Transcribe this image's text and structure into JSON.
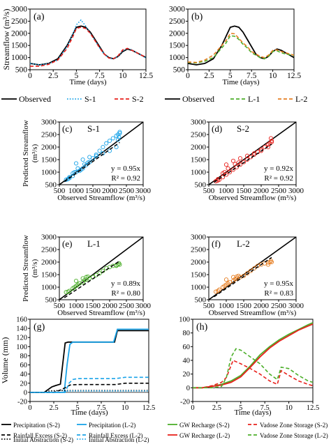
{
  "chart_data": [
    {
      "id": "a",
      "type": "line",
      "panel_label": "(a)",
      "ylabel": "Streamflow (m³/s)",
      "xlabel": "Time (days)",
      "xlim": [
        0,
        12.5
      ],
      "ylim": [
        500,
        3000
      ],
      "xticks": [
        "0",
        "2.5",
        "5",
        "7.5",
        "10",
        "12.5"
      ],
      "yticks": [
        "500",
        "1000",
        "1500",
        "2000",
        "2500",
        "3000"
      ],
      "series": [
        {
          "name": "Observed",
          "color": "#000000",
          "dash": "solid",
          "x": [
            0,
            1,
            2,
            3,
            4,
            4.6,
            5,
            5.5,
            6,
            6.5,
            7,
            7.5,
            8,
            8.5,
            9,
            9.5,
            10,
            10.5,
            11,
            11.5,
            12,
            12.5
          ],
          "y": [
            760,
            700,
            760,
            950,
            1500,
            1950,
            2250,
            2300,
            2250,
            2050,
            1750,
            1450,
            1150,
            1000,
            950,
            1050,
            1250,
            1350,
            1300,
            1200,
            1100,
            1000
          ]
        },
        {
          "name": "S-1",
          "color": "#1aa3e8",
          "dash": "dot",
          "x": [
            0,
            1,
            2,
            3,
            4,
            4.6,
            5,
            5.5,
            6,
            6.5,
            7,
            7.5,
            8,
            8.5,
            9,
            9.5,
            10,
            10.5,
            11,
            11.5,
            12,
            12.5
          ],
          "y": [
            760,
            700,
            750,
            900,
            1450,
            1950,
            2350,
            2550,
            2300,
            2000,
            1700,
            1400,
            1150,
            980,
            940,
            1060,
            1280,
            1380,
            1320,
            1200,
            1100,
            980
          ]
        },
        {
          "name": "S-2",
          "color": "#e8211c",
          "dash": "dash",
          "x": [
            0,
            1,
            2,
            3,
            4,
            4.6,
            5,
            5.5,
            6,
            6.5,
            7,
            7.5,
            8,
            8.5,
            9,
            9.5,
            10,
            10.5,
            11,
            11.5,
            12,
            12.5
          ],
          "y": [
            640,
            640,
            720,
            900,
            1380,
            1850,
            2200,
            2250,
            2200,
            2000,
            1700,
            1400,
            1150,
            980,
            950,
            1080,
            1320,
            1380,
            1300,
            1200,
            1100,
            1020
          ]
        }
      ],
      "legend": {
        "items": [
          "Observed",
          "S-1",
          "S-2"
        ]
      }
    },
    {
      "id": "b",
      "type": "line",
      "panel_label": "(b)",
      "xlabel": "Time (days)",
      "xlim": [
        0,
        12.5
      ],
      "ylim": [
        500,
        3000
      ],
      "xticks": [
        "0",
        "2.5",
        "5",
        "7.5",
        "10",
        "12.5"
      ],
      "yticks": [
        "500",
        "1000",
        "1500",
        "2000",
        "2500",
        "3000"
      ],
      "series": [
        {
          "name": "Observed",
          "color": "#000000",
          "dash": "solid",
          "x": [
            0,
            1,
            2,
            3,
            4,
            4.6,
            5,
            5.5,
            6,
            6.5,
            7,
            7.5,
            8,
            8.5,
            9,
            9.5,
            10,
            10.5,
            11,
            11.5,
            12,
            12.5
          ],
          "y": [
            760,
            700,
            760,
            950,
            1500,
            1950,
            2250,
            2300,
            2250,
            2050,
            1750,
            1450,
            1150,
            1000,
            950,
            1050,
            1250,
            1350,
            1300,
            1200,
            1100,
            1000
          ]
        },
        {
          "name": "L-1",
          "color": "#4caf2a",
          "dash": "dash",
          "x": [
            0,
            1,
            2,
            3,
            4,
            4.5,
            5,
            5.5,
            6,
            6.5,
            7,
            7.5,
            8,
            8.5,
            9,
            9.5,
            10,
            10.5,
            11,
            11.5,
            12,
            12.5
          ],
          "y": [
            800,
            780,
            850,
            1000,
            1400,
            1600,
            1900,
            1880,
            1750,
            1550,
            1400,
            1200,
            1100,
            1000,
            950,
            1050,
            1250,
            1280,
            1200,
            1150,
            1120,
            1080
          ]
        },
        {
          "name": "L-2",
          "color": "#e67e22",
          "dash": "dash",
          "x": [
            0,
            1,
            2,
            3,
            4,
            4.5,
            5,
            5.5,
            6,
            6.5,
            7,
            7.5,
            8,
            8.5,
            9,
            9.5,
            10,
            10.5,
            11,
            11.5,
            12,
            12.5
          ],
          "y": [
            820,
            800,
            900,
            1100,
            1500,
            1700,
            2000,
            1980,
            1800,
            1600,
            1450,
            1250,
            1150,
            1050,
            1000,
            1100,
            1300,
            1320,
            1250,
            1200,
            1150,
            1100
          ]
        }
      ],
      "legend": {
        "items": [
          "Observed",
          "L-1",
          "L-2"
        ]
      }
    },
    {
      "id": "c",
      "type": "scatter",
      "panel_label": "(c)",
      "series_label": "S-1",
      "xlabel": "Observed Streamflow (m³/s)",
      "ylabel": "Predicted Streamflow (m³/s)",
      "xlim": [
        500,
        3000
      ],
      "ylim": [
        500,
        3000
      ],
      "xticks": [
        "500",
        "1000",
        "1500",
        "2000",
        "2500",
        "3000"
      ],
      "yticks": [
        "500",
        "1000",
        "1500",
        "2000",
        "2500",
        "3000"
      ],
      "color": "#1aa3e8",
      "fit_slope": 0.95,
      "equation": "y = 0.95x",
      "r2": "R² = 0.92",
      "x": [
        700,
        750,
        800,
        900,
        1000,
        1100,
        1150,
        1200,
        1300,
        1400,
        1500,
        1600,
        1700,
        1800,
        1900,
        2000,
        2100,
        2200,
        2250,
        2300,
        1000,
        1200,
        1400,
        1600,
        1800,
        2000,
        2200,
        2250,
        2300,
        2280,
        950,
        1050,
        1250,
        1350,
        900,
        800
      ],
      "y": [
        700,
        720,
        760,
        850,
        1000,
        1050,
        1100,
        1150,
        1280,
        1400,
        1550,
        1700,
        1850,
        2000,
        2150,
        2250,
        2350,
        2450,
        2500,
        2550,
        1350,
        1500,
        1600,
        1650,
        1750,
        1850,
        2000,
        2300,
        2600,
        2400,
        1000,
        1150,
        1320,
        1380,
        950,
        800
      ]
    },
    {
      "id": "d",
      "type": "scatter",
      "panel_label": "(d)",
      "series_label": "S-2",
      "xlabel": "Observed Streamflow (m³/s)",
      "xlim": [
        500,
        3000
      ],
      "ylim": [
        500,
        3000
      ],
      "xticks": [
        "500",
        "1000",
        "1500",
        "2000",
        "2500",
        "3000"
      ],
      "yticks": [
        "500",
        "1000",
        "1500",
        "2000",
        "2500",
        "3000"
      ],
      "color": "#e8211c",
      "fit_slope": 0.92,
      "equation": "y = 0.92x",
      "r2": "R² = 0.92",
      "x": [
        700,
        750,
        800,
        900,
        1000,
        1100,
        1200,
        1300,
        1400,
        1500,
        1600,
        1700,
        1800,
        1900,
        2000,
        2100,
        2200,
        2250,
        2300,
        1000,
        1200,
        1400,
        1600,
        1800,
        2000,
        2200,
        2300,
        2280,
        950,
        1050,
        1250,
        1350,
        900,
        760
      ],
      "y": [
        640,
        660,
        700,
        800,
        900,
        1000,
        1100,
        1200,
        1300,
        1400,
        1500,
        1600,
        1700,
        1800,
        1900,
        2000,
        2100,
        2150,
        2200,
        1300,
        1450,
        1550,
        1650,
        1750,
        1850,
        2000,
        2250,
        2350,
        1000,
        1150,
        1320,
        1380,
        950,
        720
      ]
    },
    {
      "id": "e",
      "type": "scatter",
      "panel_label": "(e)",
      "series_label": "L-1",
      "xlabel": "Observed Streamflow (m³/s)",
      "ylabel": "Predicted Streamflow (m³/s)",
      "xlim": [
        500,
        3000
      ],
      "ylim": [
        500,
        3000
      ],
      "xticks": [
        "500",
        "1000",
        "1500",
        "2000",
        "2500",
        "3000"
      ],
      "yticks": [
        "500",
        "1000",
        "1500",
        "2000",
        "2500",
        "3000"
      ],
      "color": "#4caf2a",
      "fit_slope": 0.89,
      "equation": "y = 0.89x",
      "r2": "R² = 0.80",
      "x": [
        700,
        760,
        800,
        900,
        1000,
        1100,
        1200,
        1300,
        1400,
        1500,
        1600,
        1700,
        1800,
        1900,
        2000,
        2100,
        2200,
        2250,
        2300,
        1000,
        1200,
        1300,
        1350,
        950,
        1050,
        1250,
        2280,
        2200
      ],
      "y": [
        800,
        820,
        850,
        950,
        1050,
        1150,
        1200,
        1300,
        1350,
        1400,
        1480,
        1550,
        1650,
        1750,
        1800,
        1850,
        1880,
        1900,
        1900,
        1250,
        1350,
        1400,
        1420,
        1000,
        1100,
        1280,
        1950,
        1850
      ]
    },
    {
      "id": "f",
      "type": "scatter",
      "panel_label": "(f)",
      "series_label": "L-2",
      "xlabel": "Observed Streamflow (m³/s)",
      "xlim": [
        500,
        3000
      ],
      "ylim": [
        500,
        3000
      ],
      "xticks": [
        "500",
        "1000",
        "1500",
        "2000",
        "2500",
        "3000"
      ],
      "yticks": [
        "500",
        "1000",
        "1500",
        "2000",
        "2500",
        "3000"
      ],
      "color": "#e67e22",
      "fit_slope": 0.95,
      "equation": "y = 0.95x",
      "r2": "R² = 0.83",
      "x": [
        700,
        760,
        800,
        900,
        1000,
        1100,
        1200,
        1300,
        1400,
        1500,
        1600,
        1700,
        1800,
        1900,
        2000,
        2100,
        2200,
        2250,
        2300,
        1000,
        1200,
        1300,
        1350,
        950,
        1050,
        1250,
        2280,
        2200
      ],
      "y": [
        820,
        850,
        900,
        1000,
        1100,
        1200,
        1250,
        1350,
        1400,
        1450,
        1550,
        1650,
        1750,
        1850,
        1900,
        1950,
        1980,
        2000,
        2000,
        1300,
        1400,
        1420,
        1450,
        1050,
        1150,
        1320,
        2050,
        1900
      ]
    },
    {
      "id": "g",
      "type": "line",
      "panel_label": "(g)",
      "ylabel": "Volume (mm)",
      "xlabel": "Time (days)",
      "xlim": [
        0,
        12.5
      ],
      "ylim": [
        -20,
        160
      ],
      "xticks": [
        "0",
        "2.5",
        "5",
        "7.5",
        "10",
        "12.5"
      ],
      "yticks": [
        "-20",
        "0",
        "20",
        "40",
        "60",
        "80",
        "100",
        "120",
        "140",
        "160"
      ],
      "series": [
        {
          "name": "Precipitation (S-2)",
          "color": "#000000",
          "dash": "solid",
          "x": [
            0,
            1.5,
            2.3,
            2.7,
            3.2,
            3.7,
            4,
            4.5,
            8.9,
            9.2,
            12.5
          ],
          "y": [
            0,
            0,
            12,
            15,
            18,
            108,
            110,
            110,
            110,
            135,
            135
          ]
        },
        {
          "name": "Precipitation (L-2)",
          "color": "#1aa3e8",
          "dash": "solid",
          "x": [
            0,
            3.6,
            3.9,
            4.2,
            4.5,
            5,
            8.8,
            9.2,
            12.5
          ],
          "y": [
            0,
            0,
            60,
            105,
            110,
            110,
            110,
            138,
            138
          ]
        },
        {
          "name": "Rainfall Excess (S-2)",
          "color": "#000000",
          "dash": "dash",
          "x": [
            0,
            2.5,
            3.2,
            3.7,
            4.2,
            5,
            7,
            9,
            10,
            12.5
          ],
          "y": [
            0,
            0,
            5,
            10,
            16,
            17,
            17,
            17,
            20,
            20
          ]
        },
        {
          "name": "Rainfall Excess (L-2)",
          "color": "#1aa3e8",
          "dash": "dash",
          "x": [
            0,
            3.7,
            4.1,
            4.5,
            5,
            7,
            9,
            10,
            12.5
          ],
          "y": [
            0,
            0,
            20,
            28,
            30,
            30,
            30,
            33,
            33
          ]
        },
        {
          "name": "Initial Abstraction (S-2)",
          "color": "#000000",
          "dash": "dot",
          "x": [
            0,
            1.5,
            2,
            3,
            4,
            12.5
          ],
          "y": [
            0,
            0,
            3,
            4,
            4,
            4
          ]
        },
        {
          "name": "Initial Abstraction (L-2)",
          "color": "#1aa3e8",
          "dash": "dot",
          "x": [
            0,
            3.5,
            4,
            12.5
          ],
          "y": [
            0,
            0,
            3,
            3
          ]
        }
      ],
      "legend": {
        "items": [
          "Precipitation (S-2)",
          "Precipitation (L-2)",
          "Rainfall Excess (S-2)",
          "Rainfall Excess (L-2)",
          "Initial Abstraction (S-2)",
          "Initial Abstraction (L-2)"
        ]
      }
    },
    {
      "id": "h",
      "type": "line",
      "panel_label": "(h)",
      "xlabel": "Time (days)",
      "xlim": [
        0,
        12.5
      ],
      "ylim": [
        -20,
        100
      ],
      "xticks": [
        "0",
        "2.5",
        "5",
        "7.5",
        "10",
        "12.5"
      ],
      "yticks": [
        "-20",
        "0",
        "20",
        "40",
        "60",
        "80",
        "100"
      ],
      "series": [
        {
          "name": "GW Recharge (S-2)",
          "color": "#4caf2a",
          "dash": "solid",
          "x": [
            0,
            1,
            2,
            3,
            4,
            5,
            6,
            7,
            8,
            9,
            10,
            11,
            12,
            12.5
          ],
          "y": [
            0,
            0,
            2,
            5,
            10,
            18,
            32,
            48,
            60,
            70,
            78,
            85,
            92,
            95
          ]
        },
        {
          "name": "GW Recharge (L-2)",
          "color": "#e8211c",
          "dash": "solid",
          "x": [
            0,
            1,
            2,
            3,
            4,
            5,
            6,
            7,
            8,
            9,
            10,
            11,
            12,
            12.5
          ],
          "y": [
            0,
            0,
            2,
            4,
            8,
            16,
            30,
            45,
            58,
            68,
            76,
            84,
            90,
            93
          ]
        },
        {
          "name": "Vadose Zone Storage (S-2)",
          "color": "#e8211c",
          "dash": "dash",
          "x": [
            0,
            1,
            2,
            3,
            3.5,
            4.2,
            5,
            6,
            7,
            8,
            8.8,
            9.2,
            10,
            11,
            12,
            12.5
          ],
          "y": [
            0,
            0,
            3,
            8,
            15,
            40,
            35,
            28,
            20,
            10,
            5,
            25,
            18,
            10,
            5,
            3
          ]
        },
        {
          "name": "Vadose Zone Storage (L-2)",
          "color": "#4caf2a",
          "dash": "dash",
          "x": [
            0,
            1,
            2,
            3,
            3.5,
            4,
            4.5,
            5,
            6,
            7,
            8,
            8.8,
            9.2,
            10,
            11,
            12,
            12.5
          ],
          "y": [
            0,
            0,
            0,
            2,
            15,
            45,
            57,
            55,
            45,
            35,
            20,
            12,
            30,
            28,
            18,
            10,
            8
          ]
        }
      ],
      "legend": {
        "items": [
          "GW Recharge (S-2)",
          "Vadose Zone Storage (S-2)",
          "GW Recharge (L-2)",
          "Vadose Zone Storage (L-2)"
        ]
      }
    }
  ]
}
